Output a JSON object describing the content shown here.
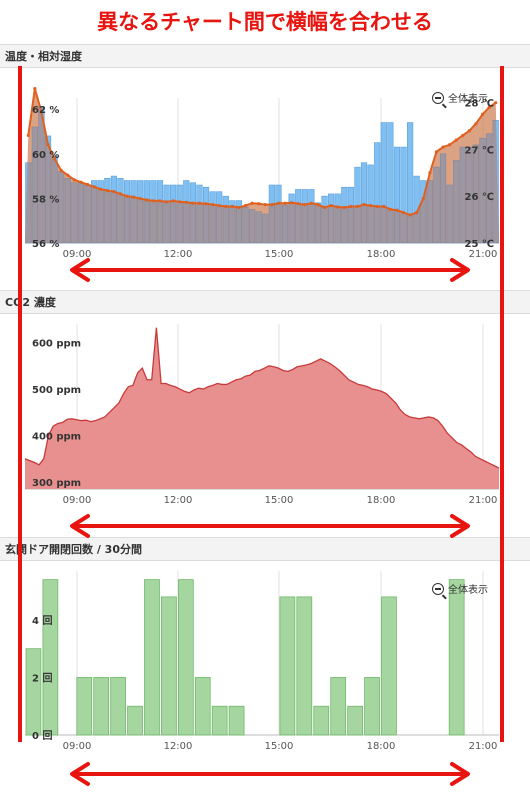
{
  "title": "異なるチャート間で横幅を合わせる",
  "zoom_label": "全体表示",
  "colors": {
    "annotation": "#e8140f",
    "humidity_bar": "#6ab4f0",
    "temperature_line": "#e06020",
    "co2_fill": "#e89090",
    "co2_line": "#c83a3a",
    "door_bar": "#a6d6a0"
  },
  "x_ticks": [
    "09:00",
    "12:00",
    "15:00",
    "18:00",
    "21:00"
  ],
  "chart_data": [
    {
      "type": "bar",
      "title": "温度・相対湿度",
      "y_ticks_left": [
        "56 %",
        "58 %",
        "60 %",
        "62 %"
      ],
      "y_ticks_right": [
        "25 ℃",
        "26 ℃",
        "27 ℃",
        "28 ℃"
      ],
      "ylim_left": [
        56,
        62.5
      ],
      "ylim_right": [
        25,
        28.1
      ],
      "series": [
        {
          "type": "bar",
          "values": [
            59.6,
            61.2,
            62.1,
            60.8,
            59.9,
            59.2,
            58.9,
            58.7,
            58.7,
            58.6,
            58.8,
            58.8,
            58.9,
            59.0,
            58.9,
            58.8,
            58.8,
            58.8,
            58.8,
            58.8,
            58.8,
            58.6,
            58.6,
            58.6,
            58.8,
            58.7,
            58.6,
            58.5,
            58.3,
            58.3,
            58.1,
            57.9,
            57.9,
            57.6,
            57.5,
            57.4,
            57.3,
            58.6,
            58.6,
            57.7,
            58.2,
            58.4,
            58.4,
            58.4,
            57.8,
            58.1,
            58.2,
            58.2,
            58.5,
            58.5,
            59.4,
            59.6,
            59.5,
            60.5,
            61.4,
            61.4,
            60.3,
            60.3,
            61.4,
            59.0,
            58.8,
            58.8,
            59.4,
            60.0,
            58.6,
            59.7,
            60.3,
            60.3,
            60.4,
            60.7,
            60.9,
            61.5
          ]
        },
        {
          "type": "line",
          "axis": "right",
          "values": [
            27.3,
            28.3,
            27.8,
            27.1,
            26.8,
            26.55,
            26.45,
            26.35,
            26.3,
            26.25,
            26.2,
            26.15,
            26.12,
            26.1,
            26.05,
            26.0,
            25.98,
            25.95,
            25.92,
            25.9,
            25.9,
            25.88,
            25.9,
            25.88,
            25.87,
            25.85,
            25.85,
            25.84,
            25.82,
            25.8,
            25.78,
            25.78,
            25.76,
            25.8,
            25.85,
            25.84,
            25.82,
            25.82,
            25.85,
            25.85,
            25.86,
            25.84,
            25.82,
            25.85,
            25.82,
            25.76,
            25.8,
            25.77,
            25.76,
            25.78,
            25.78,
            25.82,
            25.8,
            25.78,
            25.78,
            25.72,
            25.7,
            25.65,
            25.6,
            25.65,
            25.95,
            26.5,
            26.95,
            27.05,
            27.1,
            27.2,
            27.3,
            27.4,
            27.55,
            27.75,
            27.9,
            28.0
          ]
        }
      ]
    },
    {
      "type": "area",
      "title": "CO2 濃度",
      "y_ticks": [
        "300 ppm",
        "400 ppm",
        "500 ppm",
        "600 ppm"
      ],
      "ylim": [
        285,
        640
      ],
      "values": [
        350,
        346,
        342,
        337,
        350,
        400,
        420,
        426,
        428,
        435,
        436,
        434,
        432,
        433,
        430,
        432,
        436,
        440,
        450,
        460,
        470,
        490,
        505,
        508,
        535,
        545,
        520,
        520,
        632,
        512,
        512,
        508,
        505,
        500,
        495,
        492,
        498,
        502,
        500,
        505,
        508,
        512,
        510,
        510,
        515,
        520,
        522,
        528,
        530,
        538,
        540,
        545,
        550,
        548,
        545,
        540,
        538,
        542,
        548,
        550,
        552,
        555,
        560,
        565,
        560,
        555,
        548,
        540,
        530,
        520,
        515,
        510,
        508,
        505,
        500,
        498,
        495,
        490,
        480,
        470,
        455,
        445,
        440,
        438,
        436,
        438,
        440,
        438,
        432,
        420,
        405,
        395,
        385,
        380,
        372,
        365,
        355,
        350,
        345,
        340,
        335,
        330
      ]
    },
    {
      "type": "bar",
      "title": "玄関ドア開閉回数 / 30分間",
      "y_ticks": [
        "0 回",
        "2 回",
        "4 回"
      ],
      "ylim": [
        0,
        5.7
      ],
      "values": [
        3,
        5.4,
        0,
        2,
        2,
        2,
        1,
        5.4,
        4.8,
        5.4,
        2,
        1,
        1,
        0,
        0,
        4.8,
        4.8,
        1,
        2,
        1,
        2,
        4.8,
        0,
        0,
        0,
        5.4,
        0,
        0
      ]
    }
  ]
}
